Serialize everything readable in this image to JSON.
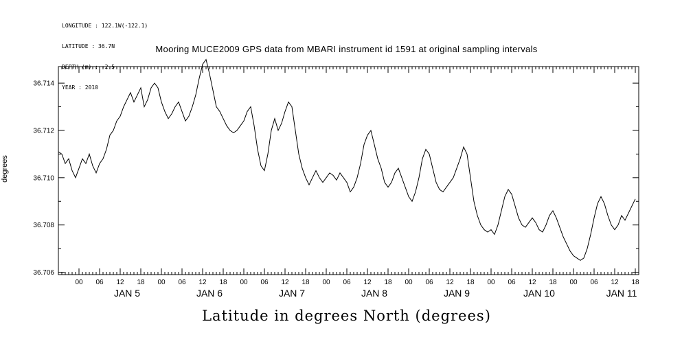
{
  "meta": {
    "lines": [
      "LONGITUDE : 122.1W(-122.1)",
      "LATITUDE : 36.7N",
      "DEPTH (m) : -2.5",
      "YEAR : 2010"
    ]
  },
  "chart_data": {
    "type": "line",
    "title": "Mooring MUCE2009 GPS data from MBARI instrument id 1591 at original sampling intervals",
    "xlabel": "Latitude in degrees North (degrees)",
    "ylabel": "degrees",
    "ylim": [
      36.7059,
      36.7147
    ],
    "y_ticks": [
      36.706,
      36.708,
      36.71,
      36.712,
      36.714
    ],
    "y_minor_ticks": [
      36.707,
      36.709,
      36.711,
      36.713
    ],
    "x_hours_range": [
      0,
      169
    ],
    "hour_labels": [
      "00",
      "06",
      "12",
      "18"
    ],
    "days": [
      {
        "label": "JAN 5",
        "start_hour": 6
      },
      {
        "label": "JAN 6",
        "start_hour": 30
      },
      {
        "label": "JAN 7",
        "start_hour": 54
      },
      {
        "label": "JAN 8",
        "start_hour": 78
      },
      {
        "label": "JAN 9",
        "start_hour": 102
      },
      {
        "label": "JAN 10",
        "start_hour": 126
      },
      {
        "label": "JAN 11",
        "start_hour": 150
      }
    ],
    "grid": false,
    "legend": false,
    "line_color": "#000000",
    "series": [
      {
        "name": "latitude_degrees_north",
        "x_start_hour": 0,
        "x_step_hours": 1,
        "values": [
          36.7111,
          36.711,
          36.7106,
          36.7108,
          36.7103,
          36.71,
          36.7104,
          36.7108,
          36.7106,
          36.711,
          36.7105,
          36.7102,
          36.7106,
          36.7108,
          36.7112,
          36.7118,
          36.712,
          36.7124,
          36.7126,
          36.713,
          36.7133,
          36.7136,
          36.7132,
          36.7135,
          36.7138,
          36.713,
          36.7133,
          36.7138,
          36.714,
          36.7138,
          36.7132,
          36.7128,
          36.7125,
          36.7127,
          36.713,
          36.7132,
          36.7128,
          36.7124,
          36.7126,
          36.713,
          36.7135,
          36.7142,
          36.7148,
          36.715,
          36.7144,
          36.7137,
          36.713,
          36.7128,
          36.7125,
          36.7122,
          36.712,
          36.7119,
          36.712,
          36.7122,
          36.7124,
          36.7128,
          36.713,
          36.7122,
          36.7112,
          36.7105,
          36.7103,
          36.711,
          36.712,
          36.7125,
          36.712,
          36.7123,
          36.7128,
          36.7132,
          36.713,
          36.712,
          36.711,
          36.7104,
          36.71,
          36.7097,
          36.71,
          36.7103,
          36.71,
          36.7098,
          36.71,
          36.7102,
          36.7101,
          36.7099,
          36.7102,
          36.71,
          36.7098,
          36.7094,
          36.7096,
          36.71,
          36.7106,
          36.7114,
          36.7118,
          36.712,
          36.7114,
          36.7108,
          36.7104,
          36.7098,
          36.7096,
          36.7098,
          36.7102,
          36.7104,
          36.71,
          36.7096,
          36.7092,
          36.709,
          36.7094,
          36.71,
          36.7108,
          36.7112,
          36.711,
          36.7104,
          36.7098,
          36.7095,
          36.7094,
          36.7096,
          36.7098,
          36.71,
          36.7104,
          36.7108,
          36.7113,
          36.711,
          36.71,
          36.709,
          36.7084,
          36.708,
          36.7078,
          36.7077,
          36.7078,
          36.7076,
          36.708,
          36.7086,
          36.7092,
          36.7095,
          36.7093,
          36.7088,
          36.7083,
          36.708,
          36.7079,
          36.7081,
          36.7083,
          36.7081,
          36.7078,
          36.7077,
          36.708,
          36.7084,
          36.7086,
          36.7083,
          36.7079,
          36.7075,
          36.7072,
          36.7069,
          36.7067,
          36.7066,
          36.7065,
          36.7066,
          36.707,
          36.7076,
          36.7083,
          36.7089,
          36.7092,
          36.7089,
          36.7084,
          36.708,
          36.7078,
          36.708,
          36.7084,
          36.7082,
          36.7085,
          36.7088,
          36.7091
        ]
      }
    ]
  }
}
